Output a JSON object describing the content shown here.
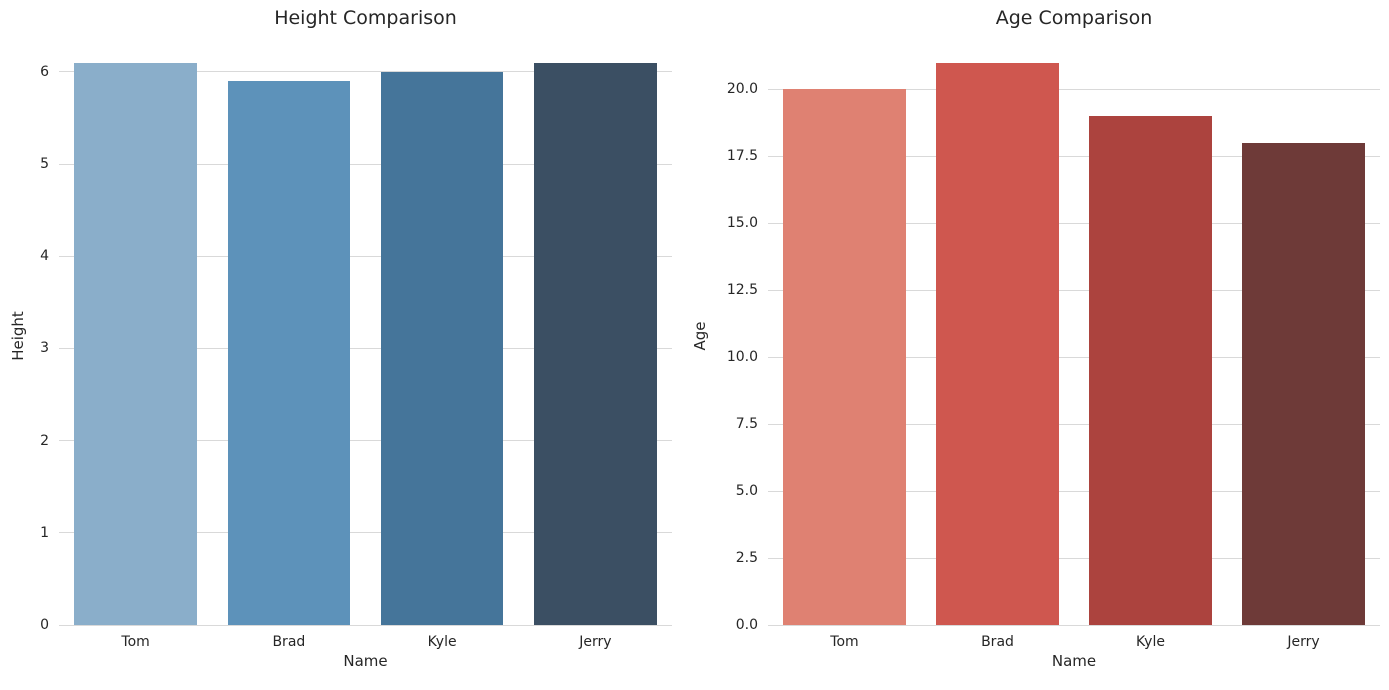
{
  "figure": {
    "background_color": "#ffffff",
    "grid_color": "#d9d9d9",
    "text_color": "#262626",
    "grid": "horizontal-only",
    "spines": "none"
  },
  "chart_data": [
    {
      "type": "bar",
      "title": "Height Comparison",
      "xlabel": "Name",
      "ylabel": "Height",
      "categories": [
        "Tom",
        "Brad",
        "Kyle",
        "Jerry"
      ],
      "values": [
        6.1,
        5.9,
        6.0,
        6.1
      ],
      "bar_colors": [
        "#8aaeca",
        "#5d92ba",
        "#45759a",
        "#3b4f63"
      ],
      "ylim": [
        0,
        6.27
      ],
      "yticks": [
        0,
        1,
        2,
        3,
        4,
        5,
        6
      ],
      "ytick_labels": [
        "0",
        "1",
        "2",
        "3",
        "4",
        "5",
        "6"
      ],
      "grid": true,
      "legend": null,
      "bar_width_fraction": 0.8
    },
    {
      "type": "bar",
      "title": "Age Comparison",
      "xlabel": "Name",
      "ylabel": "Age",
      "categories": [
        "Tom",
        "Brad",
        "Kyle",
        "Jerry"
      ],
      "values": [
        20,
        21,
        19,
        18
      ],
      "bar_colors": [
        "#df8172",
        "#cf574f",
        "#ac433e",
        "#6e3a38"
      ],
      "ylim": [
        0,
        21.58
      ],
      "yticks": [
        0,
        2.5,
        5,
        7.5,
        10,
        12.5,
        15,
        17.5,
        20
      ],
      "ytick_labels": [
        "0.0",
        "2.5",
        "5.0",
        "7.5",
        "10.0",
        "12.5",
        "15.0",
        "17.5",
        "20.0"
      ],
      "grid": true,
      "legend": null,
      "bar_width_fraction": 0.8
    }
  ]
}
